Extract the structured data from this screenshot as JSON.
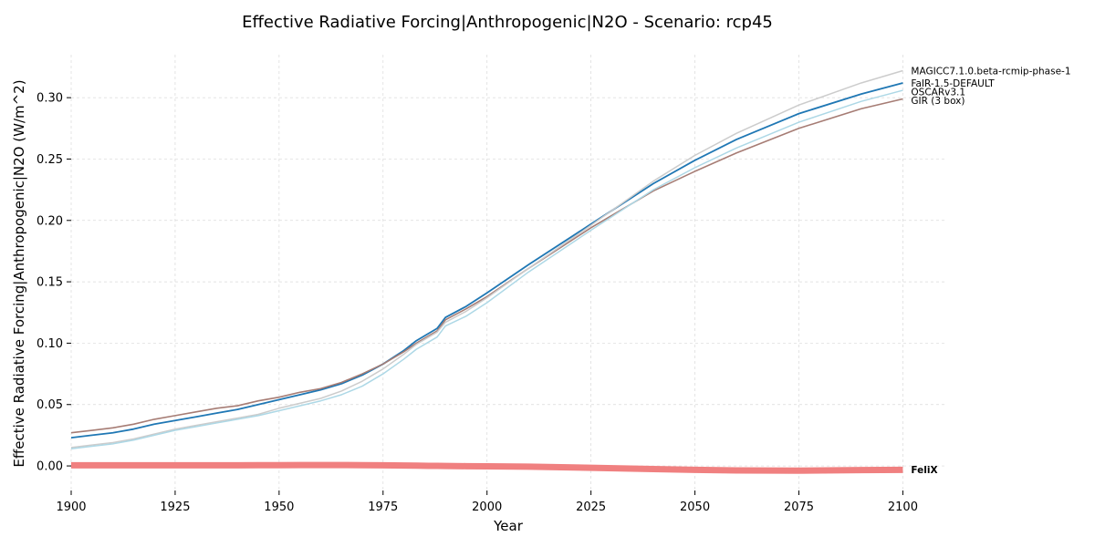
{
  "chart_data": {
    "type": "line",
    "title": "Effective Radiative Forcing|Anthropogenic|N2O - Scenario: rcp45",
    "xlabel": "Year",
    "ylabel": "Effective Radiative Forcing|Anthropogenic|N2O (W/m^2)",
    "xlim": [
      1900,
      2110
    ],
    "ylim": [
      -0.02,
      0.335
    ],
    "x_ticks": [
      1900,
      1925,
      1950,
      1975,
      2000,
      2025,
      2050,
      2075,
      2100
    ],
    "y_ticks": [
      0.0,
      0.05,
      0.1,
      0.15,
      0.2,
      0.25,
      0.3
    ],
    "y_tick_labels": [
      "0.00",
      "0.05",
      "0.10",
      "0.15",
      "0.20",
      "0.25",
      "0.30"
    ],
    "grid": true,
    "x": [
      1900,
      1905,
      1910,
      1915,
      1920,
      1925,
      1930,
      1935,
      1940,
      1945,
      1950,
      1955,
      1960,
      1965,
      1970,
      1975,
      1980,
      1983,
      1986,
      1988,
      1990,
      1995,
      2000,
      2010,
      2025,
      2040,
      2050,
      2060,
      2075,
      2090,
      2100
    ],
    "series": [
      {
        "name": "MAGICC7.1.0.beta-rcmip-phase-1",
        "color": "#cccccc",
        "width": 1.5,
        "values": [
          0.015,
          0.017,
          0.019,
          0.022,
          0.026,
          0.03,
          0.033,
          0.036,
          0.039,
          0.042,
          0.047,
          0.051,
          0.055,
          0.061,
          0.069,
          0.079,
          0.091,
          0.099,
          0.105,
          0.109,
          0.117,
          0.126,
          0.137,
          0.161,
          0.196,
          0.232,
          0.253,
          0.271,
          0.294,
          0.312,
          0.322
        ]
      },
      {
        "name": "FaIR-1.5-DEFAULT",
        "color": "#1f77b4",
        "width": 1.8,
        "values": [
          0.023,
          0.025,
          0.027,
          0.03,
          0.034,
          0.037,
          0.04,
          0.043,
          0.046,
          0.05,
          0.054,
          0.058,
          0.062,
          0.067,
          0.074,
          0.083,
          0.094,
          0.102,
          0.108,
          0.112,
          0.121,
          0.13,
          0.141,
          0.164,
          0.197,
          0.23,
          0.249,
          0.266,
          0.287,
          0.303,
          0.312
        ]
      },
      {
        "name": "OSCARv3.1",
        "color": "#add8e6",
        "width": 1.5,
        "values": [
          0.014,
          0.016,
          0.018,
          0.021,
          0.025,
          0.029,
          0.032,
          0.035,
          0.038,
          0.041,
          0.045,
          0.049,
          0.053,
          0.058,
          0.065,
          0.075,
          0.087,
          0.095,
          0.101,
          0.105,
          0.114,
          0.122,
          0.133,
          0.158,
          0.192,
          0.225,
          0.243,
          0.259,
          0.28,
          0.297,
          0.306
        ]
      },
      {
        "name": "GIR (3 box)",
        "color": "#a67c74",
        "width": 1.6,
        "values": [
          0.027,
          0.029,
          0.031,
          0.034,
          0.038,
          0.041,
          0.044,
          0.047,
          0.049,
          0.053,
          0.056,
          0.06,
          0.063,
          0.068,
          0.075,
          0.083,
          0.093,
          0.1,
          0.106,
          0.11,
          0.119,
          0.128,
          0.138,
          0.161,
          0.194,
          0.224,
          0.24,
          0.255,
          0.275,
          0.291,
          0.299
        ]
      },
      {
        "name": "FeliX",
        "color": "#f08080",
        "width": 7,
        "label_bold": true,
        "values": [
          0.0005,
          0.0005,
          0.0005,
          0.0005,
          0.0005,
          0.0005,
          0.0005,
          0.0005,
          0.0005,
          0.0006,
          0.0006,
          0.0007,
          0.0007,
          0.0007,
          0.0006,
          0.0005,
          0.0003,
          0.0002,
          0.0001,
          0.0001,
          0.0,
          -0.0002,
          -0.0003,
          -0.0006,
          -0.0015,
          -0.0025,
          -0.0032,
          -0.0037,
          -0.0038,
          -0.0034,
          -0.0032
        ]
      }
    ]
  }
}
